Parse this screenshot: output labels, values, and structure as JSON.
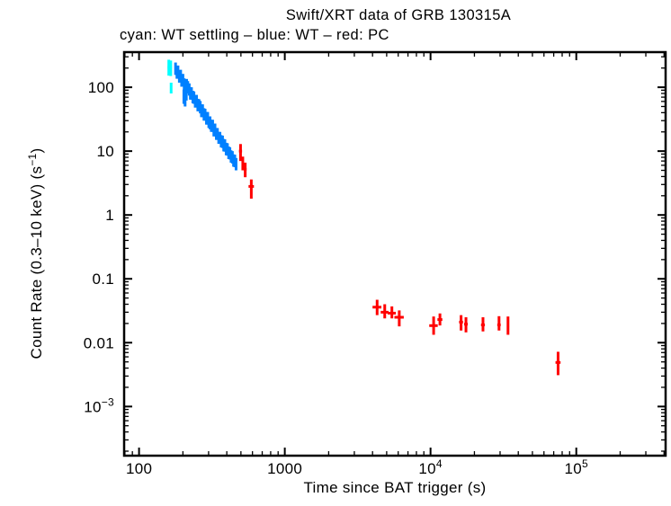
{
  "colors": {
    "wt_settling": "#00ffff",
    "wt": "#0080ff",
    "pc": "#ff0000",
    "axis": "#000000",
    "background": "#ffffff"
  },
  "chart_data": {
    "type": "scatter",
    "title": "Swift/XRT data of GRB 130315A",
    "subtitle": "cyan: WT settling – blue: WT – red: PC",
    "xlabel": "Time since BAT trigger (s)",
    "ylabel_parts": {
      "prefix": "Count Rate (0.3–10 keV) (s",
      "sup": "−1",
      "suffix": ")"
    },
    "xscale": "log",
    "yscale": "log",
    "xlim": [
      79,
      410000
    ],
    "ylim": [
      0.00017,
      355
    ],
    "grid": false,
    "legend_position": "none",
    "xticks": [
      {
        "value": 100,
        "label": "100",
        "sup": null
      },
      {
        "value": 1000,
        "label": "1000",
        "sup": null
      },
      {
        "value": 10000,
        "label": "10",
        "sup": "4"
      },
      {
        "value": 100000,
        "label": "10",
        "sup": "5"
      }
    ],
    "yticks": [
      {
        "value": 100,
        "label": "100",
        "sup": null
      },
      {
        "value": 10,
        "label": "10",
        "sup": null
      },
      {
        "value": 1,
        "label": "1",
        "sup": null
      },
      {
        "value": 0.1,
        "label": "0.1",
        "sup": null
      },
      {
        "value": 0.01,
        "label": "0.01",
        "sup": null
      },
      {
        "value": 0.001,
        "label": "10",
        "sup": "−3"
      }
    ],
    "point_format": [
      "t_s",
      "t_err_s",
      "rate",
      "rate_lo",
      "rate_hi"
    ],
    "series": [
      {
        "name": "WT settling",
        "mode": "wt_settling",
        "color": "#00ffff",
        "points": [
          [
            160,
            3,
            205,
            152,
            270
          ],
          [
            165,
            3,
            200,
            150,
            262
          ],
          [
            166,
            2,
            97,
            80,
            118
          ]
        ]
      },
      {
        "name": "WT",
        "mode": "wt",
        "color": "#0080ff",
        "points": [
          [
            178,
            3,
            195,
            156,
            244
          ],
          [
            182,
            3,
            170,
            136,
            212
          ],
          [
            185,
            3,
            175,
            140,
            219
          ],
          [
            189,
            3,
            148,
            118,
            185
          ],
          [
            193,
            3,
            150,
            120,
            188
          ],
          [
            196,
            3,
            128,
            102,
            160
          ],
          [
            200,
            3,
            130,
            104,
            162
          ],
          [
            204,
            3,
            110,
            88,
            138
          ],
          [
            203,
            2,
            72,
            55,
            92
          ],
          [
            207,
            2,
            64,
            50,
            82
          ],
          [
            211,
            2,
            78,
            62,
            97
          ],
          [
            208,
            3,
            105,
            84,
            131
          ],
          [
            212,
            3,
            108,
            86,
            135
          ],
          [
            216,
            3,
            100,
            80,
            125
          ],
          [
            221,
            3,
            92,
            74,
            115
          ],
          [
            225,
            3,
            80,
            64,
            100
          ],
          [
            229,
            3,
            80,
            64,
            100
          ],
          [
            234,
            3,
            70,
            56,
            88
          ],
          [
            238,
            3,
            69,
            55,
            86
          ],
          [
            243,
            3,
            60,
            48,
            75
          ],
          [
            248,
            3,
            61,
            49,
            76
          ],
          [
            253,
            3,
            53,
            42,
            66
          ],
          [
            258,
            3,
            52,
            42,
            65
          ],
          [
            263,
            3,
            49,
            39,
            61
          ],
          [
            268,
            3,
            43,
            34,
            54
          ],
          [
            273,
            3,
            43,
            34,
            54
          ],
          [
            279,
            3,
            37.5,
            30,
            47
          ],
          [
            284,
            3,
            37,
            30,
            46
          ],
          [
            290,
            3,
            32.5,
            26,
            41
          ],
          [
            296,
            3,
            32.5,
            26,
            41
          ],
          [
            301,
            3,
            28.3,
            23,
            35
          ],
          [
            307,
            3,
            28,
            22,
            35
          ],
          [
            313,
            3,
            24.6,
            20,
            31
          ],
          [
            320,
            3,
            24.5,
            20,
            31
          ],
          [
            326,
            3,
            21.5,
            17,
            27
          ],
          [
            332,
            3,
            21.3,
            17,
            27
          ],
          [
            339,
            3,
            18.7,
            15,
            23
          ],
          [
            345,
            3,
            18.5,
            15,
            23
          ],
          [
            352,
            3,
            16.3,
            13,
            20
          ],
          [
            359,
            3,
            16.1,
            13,
            20
          ],
          [
            366,
            3,
            14.2,
            11.4,
            17.8
          ],
          [
            374,
            3,
            14,
            11.2,
            17.5
          ],
          [
            381,
            3,
            12.4,
            9.9,
            15.5
          ],
          [
            388,
            3,
            12.2,
            9.8,
            15.3
          ],
          [
            396,
            3,
            10.8,
            8.6,
            13.5
          ],
          [
            404,
            3,
            10.6,
            8.5,
            13.3
          ],
          [
            412,
            3,
            9.4,
            7.5,
            11.8
          ],
          [
            420,
            3,
            9.2,
            7.4,
            11.5
          ],
          [
            428,
            3,
            8.2,
            6.6,
            10.3
          ],
          [
            437,
            3,
            8.0,
            6.4,
            10.0
          ],
          [
            445,
            3,
            7.1,
            5.7,
            8.9
          ],
          [
            454,
            3,
            7.0,
            5.6,
            8.8
          ],
          [
            463,
            3,
            6.2,
            5.0,
            7.8
          ]
        ]
      },
      {
        "name": "PC",
        "mode": "pc",
        "color": "#ff0000",
        "points": [
          [
            497,
            12,
            10.0,
            7.0,
            12.9
          ],
          [
            515,
            10,
            6.4,
            5.0,
            8.2
          ],
          [
            535,
            12,
            5.2,
            3.9,
            6.6
          ],
          [
            589,
            25,
            2.8,
            1.8,
            3.6
          ],
          [
            4300,
            300,
            0.036,
            0.027,
            0.047
          ],
          [
            4850,
            300,
            0.03,
            0.024,
            0.04
          ],
          [
            5430,
            350,
            0.029,
            0.024,
            0.037
          ],
          [
            6100,
            450,
            0.025,
            0.018,
            0.032
          ],
          [
            10500,
            700,
            0.0185,
            0.0133,
            0.0257
          ],
          [
            11600,
            450,
            0.023,
            0.0186,
            0.0287
          ],
          [
            16200,
            500,
            0.021,
            0.0155,
            0.027
          ],
          [
            17500,
            500,
            0.0195,
            0.0145,
            0.025
          ],
          [
            22900,
            700,
            0.019,
            0.015,
            0.025
          ],
          [
            29500,
            800,
            0.019,
            0.0155,
            0.026
          ],
          [
            34000,
            600,
            0.018,
            0.0133,
            0.0257
          ],
          [
            75000,
            3000,
            0.0049,
            0.0031,
            0.0072
          ]
        ]
      }
    ]
  }
}
